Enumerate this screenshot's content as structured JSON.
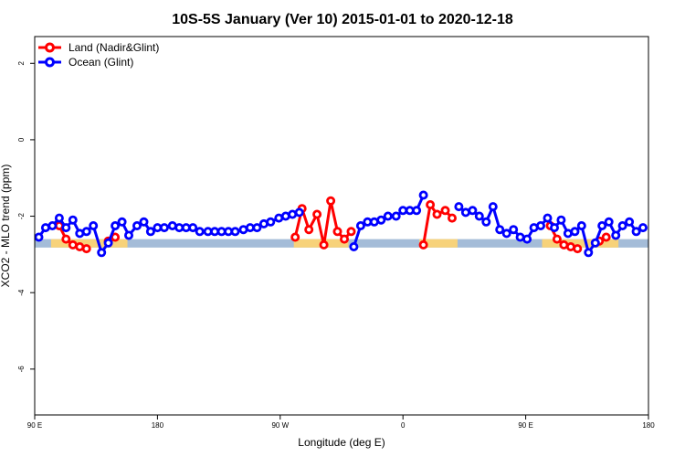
{
  "chart_data": {
    "type": "line",
    "title": "10S-5S January (Ver 10)   2015-01-01 to 2020-12-18",
    "xlabel": "Longitude (deg E)",
    "ylabel": "XCO2 - MLO trend (ppm)",
    "xlim": [
      90,
      540
    ],
    "ylim": [
      -7.2,
      2.7
    ],
    "x_ticks": [
      {
        "value": 90,
        "label": "90 E"
      },
      {
        "value": 180,
        "label": "180"
      },
      {
        "value": 270,
        "label": "90 W"
      },
      {
        "value": 360,
        "label": "0"
      },
      {
        "value": 450,
        "label": "90 E"
      },
      {
        "value": 540,
        "label": "180"
      }
    ],
    "y_ticks": [
      {
        "value": 2,
        "label": "2"
      },
      {
        "value": 0,
        "label": "0"
      },
      {
        "value": -2,
        "label": "-2"
      },
      {
        "value": -4,
        "label": "-4"
      },
      {
        "value": -6,
        "label": "-6"
      }
    ],
    "legend_position": "top-left",
    "grid": false,
    "colors": {
      "land": "#ff0000",
      "ocean": "#0000ff",
      "ocean_band": "#a4bcd8",
      "land_band": "#f7d27a"
    },
    "series": [
      {
        "name": "Land (Nadir&Glint)",
        "color": "#ff0000",
        "segments": [
          [
            [
              108,
              -2.25
            ],
            [
              113,
              -2.6
            ],
            [
              118,
              -2.75
            ],
            [
              123,
              -2.8
            ],
            [
              128,
              -2.85
            ]
          ],
          [
            [
              144,
              -2.65
            ],
            [
              149,
              -2.55
            ]
          ],
          [
            [
              281,
              -2.55
            ],
            [
              286,
              -1.8
            ],
            [
              291,
              -2.35
            ],
            [
              297,
              -1.95
            ],
            [
              302,
              -2.75
            ],
            [
              307,
              -1.6
            ],
            [
              312,
              -2.4
            ],
            [
              317,
              -2.6
            ],
            [
              322,
              -2.4
            ]
          ],
          [
            [
              375,
              -2.75
            ],
            [
              380,
              -1.7
            ],
            [
              385,
              -1.95
            ],
            [
              391,
              -1.85
            ],
            [
              396,
              -2.05
            ]
          ],
          [
            [
              468,
              -2.25
            ],
            [
              473,
              -2.6
            ],
            [
              478,
              -2.75
            ],
            [
              483,
              -2.8
            ],
            [
              488,
              -2.85
            ]
          ],
          [
            [
              504,
              -2.65
            ],
            [
              509,
              -2.55
            ]
          ]
        ]
      },
      {
        "name": "Ocean (Glint)",
        "color": "#0000ff",
        "segments": [
          [
            [
              93,
              -2.55
            ],
            [
              98,
              -2.3
            ],
            [
              103,
              -2.25
            ],
            [
              108,
              -2.05
            ],
            [
              113,
              -2.3
            ],
            [
              118,
              -2.1
            ],
            [
              123,
              -2.45
            ],
            [
              128,
              -2.4
            ],
            [
              133,
              -2.25
            ],
            [
              139,
              -2.95
            ],
            [
              144,
              -2.7
            ],
            [
              149,
              -2.25
            ],
            [
              154,
              -2.15
            ],
            [
              159,
              -2.5
            ],
            [
              165,
              -2.25
            ],
            [
              170,
              -2.15
            ],
            [
              175,
              -2.4
            ],
            [
              180,
              -2.3
            ],
            [
              185,
              -2.3
            ],
            [
              191,
              -2.25
            ],
            [
              196,
              -2.3
            ],
            [
              201,
              -2.3
            ],
            [
              206,
              -2.3
            ],
            [
              211,
              -2.4
            ],
            [
              217,
              -2.4
            ],
            [
              222,
              -2.4
            ],
            [
              227,
              -2.4
            ],
            [
              232,
              -2.4
            ],
            [
              237,
              -2.4
            ],
            [
              243,
              -2.35
            ],
            [
              248,
              -2.3
            ],
            [
              253,
              -2.3
            ],
            [
              258,
              -2.2
            ],
            [
              263,
              -2.15
            ],
            [
              269,
              -2.05
            ],
            [
              274,
              -2.0
            ],
            [
              279,
              -1.95
            ],
            [
              284,
              -1.9
            ]
          ],
          [
            [
              324,
              -2.8
            ],
            [
              329,
              -2.25
            ],
            [
              334,
              -2.15
            ],
            [
              339,
              -2.15
            ],
            [
              344,
              -2.1
            ],
            [
              349,
              -2.0
            ],
            [
              355,
              -2.0
            ],
            [
              360,
              -1.85
            ],
            [
              365,
              -1.85
            ],
            [
              370,
              -1.85
            ],
            [
              375,
              -1.45
            ]
          ],
          [
            [
              401,
              -1.75
            ],
            [
              406,
              -1.9
            ],
            [
              411,
              -1.85
            ],
            [
              416,
              -2.0
            ],
            [
              421,
              -2.15
            ],
            [
              426,
              -1.75
            ],
            [
              431,
              -2.35
            ],
            [
              436,
              -2.45
            ],
            [
              441,
              -2.35
            ],
            [
              446,
              -2.55
            ],
            [
              451,
              -2.6
            ],
            [
              456,
              -2.3
            ],
            [
              461,
              -2.25
            ],
            [
              466,
              -2.05
            ],
            [
              471,
              -2.3
            ],
            [
              476,
              -2.1
            ],
            [
              481,
              -2.45
            ],
            [
              486,
              -2.4
            ],
            [
              491,
              -2.25
            ],
            [
              496,
              -2.95
            ],
            [
              501,
              -2.7
            ],
            [
              506,
              -2.25
            ],
            [
              511,
              -2.15
            ],
            [
              516,
              -2.5
            ],
            [
              521,
              -2.25
            ],
            [
              526,
              -2.15
            ],
            [
              531,
              -2.4
            ],
            [
              536,
              -2.3
            ]
          ]
        ]
      }
    ],
    "bands": {
      "ocean": {
        "y_range": [
          -2.82,
          -2.6
        ],
        "x_range": [
          90,
          540
        ]
      },
      "land": [
        {
          "x_range": [
            102,
            158
          ]
        },
        {
          "x_range": [
            280,
            320
          ]
        },
        {
          "x_range": [
            372,
            400
          ]
        },
        {
          "x_range": [
            462,
            518
          ]
        }
      ]
    }
  }
}
